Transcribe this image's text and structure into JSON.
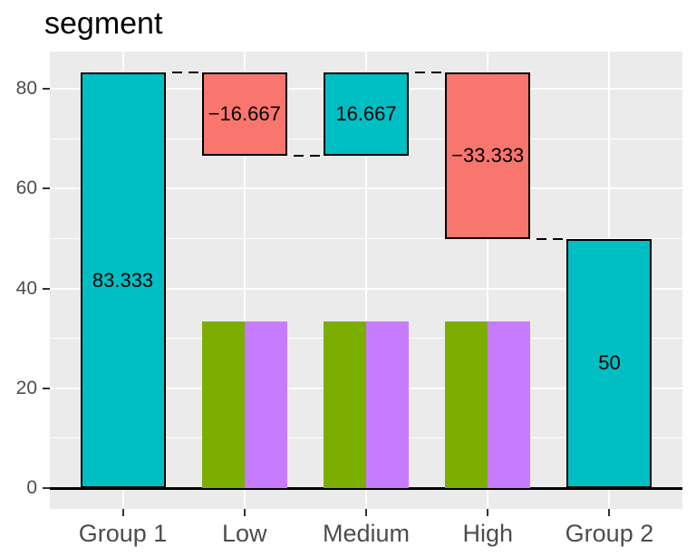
{
  "chart_data": {
    "type": "bar",
    "subtype": "waterfall_with_grouped_bars",
    "title": "segment",
    "legend": "none",
    "grid": true,
    "categories": [
      "Group 1",
      "Low",
      "Medium",
      "High",
      "Group 2"
    ],
    "y_axis": {
      "ticks": [
        0,
        20,
        40,
        60,
        80
      ],
      "minor_ticks": [
        10,
        30,
        50,
        70
      ],
      "range": [
        -4.167,
        87.5
      ]
    },
    "waterfall": [
      {
        "category": "Group 1",
        "from": 0,
        "to": 83.333,
        "label": "83.333",
        "type": "total"
      },
      {
        "category": "Low",
        "from": 83.333,
        "to": 66.667,
        "label": "−16.667",
        "type": "decrease"
      },
      {
        "category": "Medium",
        "from": 66.667,
        "to": 83.333,
        "label": "16.667",
        "type": "increase"
      },
      {
        "category": "High",
        "from": 83.333,
        "to": 50,
        "label": "−33.333",
        "type": "decrease"
      },
      {
        "category": "Group 2",
        "from": 0,
        "to": 50,
        "label": "50",
        "type": "total"
      }
    ],
    "grouped_bars": {
      "categories": [
        "Low",
        "Medium",
        "High"
      ],
      "series": [
        {
          "name": "series-green",
          "values": [
            33.333,
            33.333,
            33.333
          ]
        },
        {
          "name": "series-purple",
          "values": [
            33.333,
            33.333,
            33.333
          ]
        }
      ]
    },
    "connectors": [
      {
        "from_category": "Group 1",
        "to_category": "Low",
        "level": 83.333
      },
      {
        "from_category": "Low",
        "to_category": "Medium",
        "level": 66.667
      },
      {
        "from_category": "Medium",
        "to_category": "High",
        "level": 83.333
      },
      {
        "from_category": "High",
        "to_category": "Group 2",
        "level": 50
      }
    ],
    "colors": {
      "total_increase": "#00BFC4",
      "decrease": "#F8766D",
      "series_green": "#7CAE00",
      "series_purple": "#C77CFF",
      "panel_bg": "#EBEBEB",
      "grid": "#FFFFFF",
      "axis_text": "#4D4D4D",
      "tick_mark": "#333333",
      "bar_border": "#000000",
      "zero_line": "#000000"
    }
  }
}
